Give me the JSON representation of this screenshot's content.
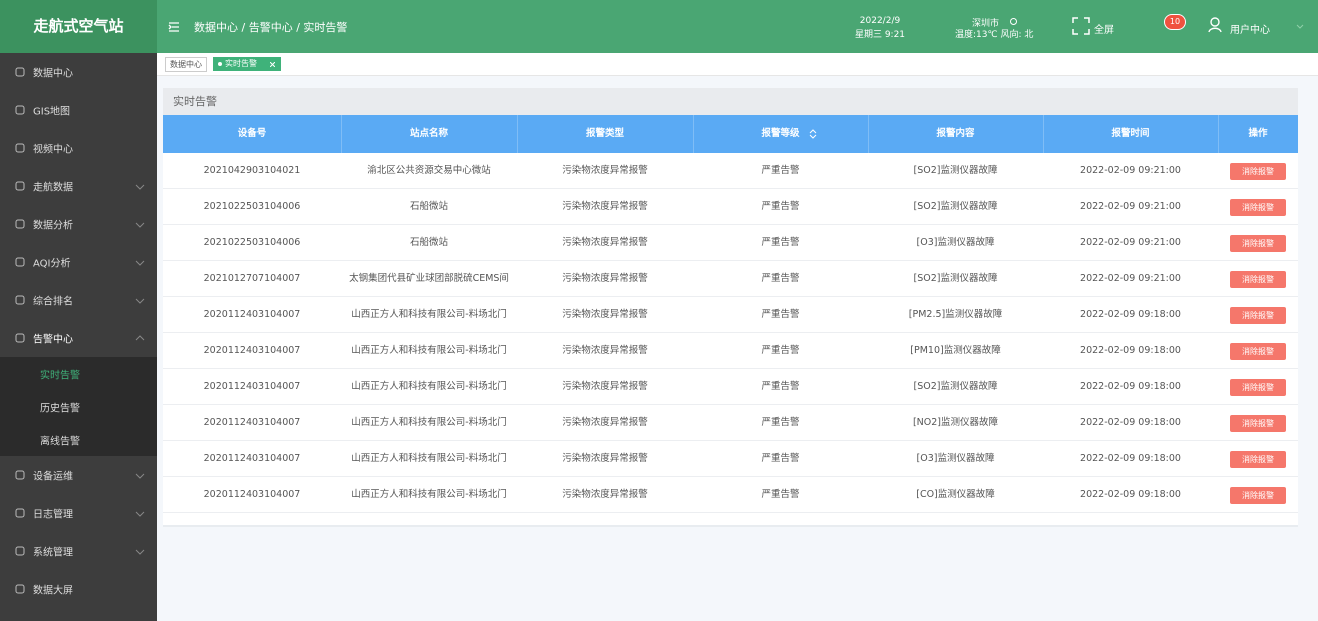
{
  "header": {
    "logo": "走航式空气站",
    "breadcrumb": "数据中心 / 告警中心 / 实时告警",
    "date": "2022/2/9",
    "weekday_time": "星期三 9:21",
    "city": "深圳市",
    "weather": "温度:13℃ 风向: 北",
    "fullscreen": "全屏",
    "badge": "10",
    "user": "用户中心"
  },
  "sidebar": {
    "items": [
      {
        "label": "数据中心"
      },
      {
        "label": "GIS地图"
      },
      {
        "label": "视频中心"
      },
      {
        "label": "走航数据"
      },
      {
        "label": "数据分析"
      },
      {
        "label": "AQI分析"
      },
      {
        "label": "综合排名"
      },
      {
        "label": "告警中心",
        "children": [
          "实时告警",
          "历史告警",
          "离线告警"
        ]
      },
      {
        "label": "设备运维"
      },
      {
        "label": "日志管理"
      },
      {
        "label": "系统管理"
      },
      {
        "label": "数据大屏"
      }
    ]
  },
  "tabs": [
    "数据中心",
    "实时告警"
  ],
  "panel": {
    "title": "实时告警"
  },
  "table": {
    "columns": [
      "设备号",
      "站点名称",
      "报警类型",
      "报警等级",
      "报警内容",
      "报警时间",
      "操作"
    ],
    "rows": [
      [
        "2021042903104021",
        "渝北区公共资源交易中心微站",
        "污染物浓度异常报警",
        "严重告警",
        "[SO2]监测仪器故障",
        "2022-02-09 09:21:00",
        "消除报警"
      ],
      [
        "2021022503104006",
        "石船微站",
        "污染物浓度异常报警",
        "严重告警",
        "[SO2]监测仪器故障",
        "2022-02-09 09:21:00",
        "消除报警"
      ],
      [
        "2021022503104006",
        "石船微站",
        "污染物浓度异常报警",
        "严重告警",
        "[O3]监测仪器故障",
        "2022-02-09 09:21:00",
        "消除报警"
      ],
      [
        "2021012707104007",
        "太钢集团代县矿业球团部脱硫CEMS间",
        "污染物浓度异常报警",
        "严重告警",
        "[SO2]监测仪器故障",
        "2022-02-09 09:21:00",
        "消除报警"
      ],
      [
        "2020112403104007",
        "山西正方人和科技有限公司-料场北门",
        "污染物浓度异常报警",
        "严重告警",
        "[PM2.5]监测仪器故障",
        "2022-02-09 09:18:00",
        "消除报警"
      ],
      [
        "2020112403104007",
        "山西正方人和科技有限公司-料场北门",
        "污染物浓度异常报警",
        "严重告警",
        "[PM10]监测仪器故障",
        "2022-02-09 09:18:00",
        "消除报警"
      ],
      [
        "2020112403104007",
        "山西正方人和科技有限公司-料场北门",
        "污染物浓度异常报警",
        "严重告警",
        "[SO2]监测仪器故障",
        "2022-02-09 09:18:00",
        "消除报警"
      ],
      [
        "2020112403104007",
        "山西正方人和科技有限公司-料场北门",
        "污染物浓度异常报警",
        "严重告警",
        "[NO2]监测仪器故障",
        "2022-02-09 09:18:00",
        "消除报警"
      ],
      [
        "2020112403104007",
        "山西正方人和科技有限公司-料场北门",
        "污染物浓度异常报警",
        "严重告警",
        "[O3]监测仪器故障",
        "2022-02-09 09:18:00",
        "消除报警"
      ],
      [
        "2020112403104007",
        "山西正方人和科技有限公司-料场北门",
        "污染物浓度异常报警",
        "严重告警",
        "[CO]监测仪器故障",
        "2022-02-09 09:18:00",
        "消除报警"
      ]
    ]
  }
}
